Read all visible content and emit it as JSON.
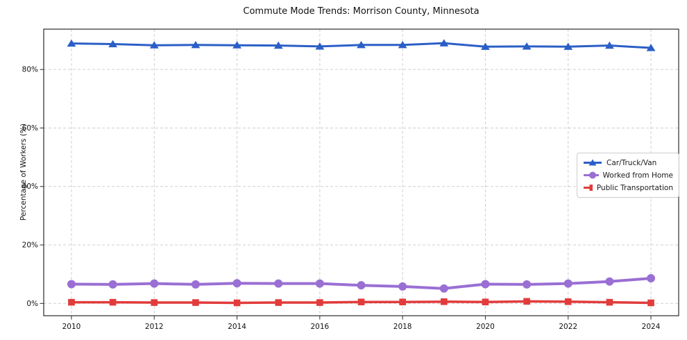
{
  "chart_data": {
    "type": "line",
    "title": "Commute Mode Trends: Morrison County, Minnesota",
    "xlabel": "",
    "ylabel": "Percentage of Workers (%)",
    "x": [
      2010,
      2011,
      2012,
      2013,
      2014,
      2015,
      2016,
      2017,
      2018,
      2019,
      2020,
      2021,
      2022,
      2023,
      2024
    ],
    "series": [
      {
        "name": "Car/Truck/Van",
        "color": "#2b5fc7",
        "marker": "triangle",
        "line_width": 3,
        "values": [
          88.9,
          88.7,
          88.3,
          88.4,
          88.3,
          88.2,
          87.9,
          88.4,
          88.4,
          89.0,
          87.8,
          87.9,
          87.8,
          88.2,
          87.4
        ]
      },
      {
        "name": "Worked from Home",
        "color": "#9a6fd4",
        "marker": "circle",
        "line_width": 4,
        "values": [
          6.6,
          6.5,
          6.8,
          6.5,
          6.9,
          6.8,
          6.8,
          6.2,
          5.8,
          5.1,
          6.6,
          6.5,
          6.8,
          7.5,
          8.6
        ]
      },
      {
        "name": "Public Transportation",
        "color": "#e23b3b",
        "marker": "square",
        "line_width": 3.5,
        "values": [
          0.4,
          0.4,
          0.3,
          0.3,
          0.2,
          0.3,
          0.3,
          0.5,
          0.5,
          0.6,
          0.5,
          0.7,
          0.6,
          0.4,
          0.2
        ]
      }
    ],
    "xticks": {
      "values": [
        2010,
        2012,
        2014,
        2016,
        2018,
        2020,
        2022,
        2024
      ],
      "labels": [
        "2010",
        "2012",
        "2014",
        "2016",
        "2018",
        "2020",
        "2022",
        "2024"
      ]
    },
    "yticks": {
      "values": [
        0,
        20,
        40,
        60,
        80
      ],
      "labels": [
        "0%",
        "20%",
        "40%",
        "60%",
        "80%"
      ]
    },
    "xlim": [
      2009.33,
      2024.67
    ],
    "ylim": [
      -4.2,
      93.8
    ],
    "grid": true,
    "legend_position": "center-right"
  },
  "colors": {
    "background": "#ffffff",
    "grid": "#cfcfcf",
    "frame": "#2a2a2a",
    "text": "#111111"
  }
}
